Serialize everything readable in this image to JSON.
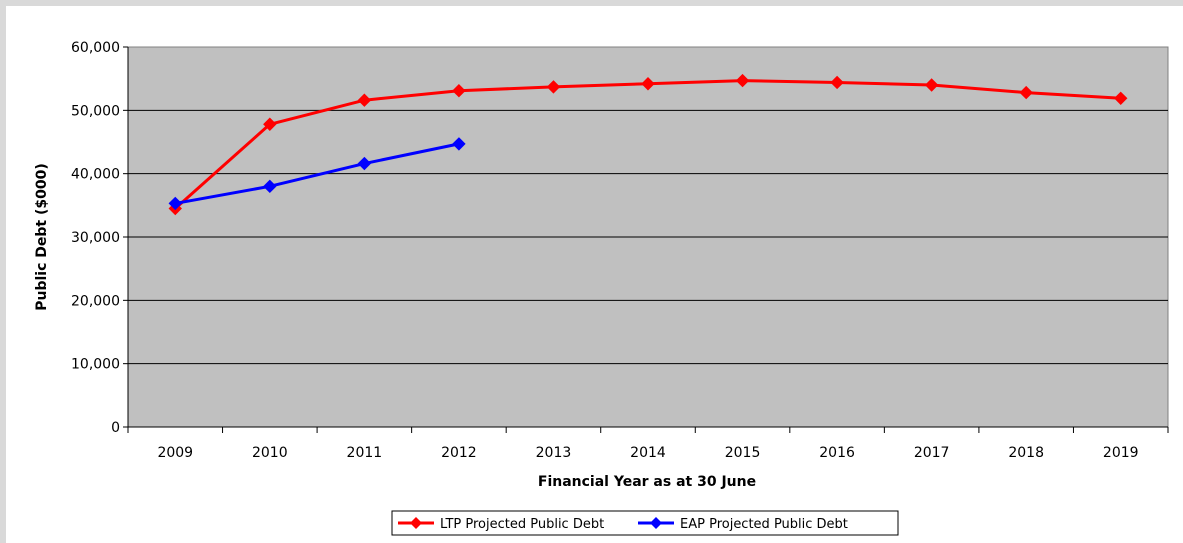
{
  "chart_data": {
    "type": "line",
    "title": "",
    "xlabel": "Financial Year as at 30 June",
    "ylabel": "Public Debt ($000)",
    "categories": [
      "2009",
      "2010",
      "2011",
      "2012",
      "2013",
      "2014",
      "2015",
      "2016",
      "2017",
      "2018",
      "2019"
    ],
    "ylim": [
      0,
      60000
    ],
    "yticks": [
      0,
      10000,
      20000,
      30000,
      40000,
      50000,
      60000
    ],
    "ytick_labels": [
      "0",
      "10,000",
      "20,000",
      "30,000",
      "40,000",
      "50,000",
      "60,000"
    ],
    "grid": "horizontal",
    "plot_background": "#c0c0c0",
    "legend_position": "bottom",
    "series": [
      {
        "name": "LTP Projected Public Debt",
        "color": "#ff0000",
        "marker": "diamond",
        "values": [
          34500,
          47800,
          51600,
          53100,
          53700,
          54200,
          54700,
          54400,
          54000,
          52800,
          51900
        ]
      },
      {
        "name": "EAP Projected Public Debt",
        "color": "#0000ff",
        "marker": "diamond",
        "values": [
          35300,
          38000,
          41600,
          44700,
          null,
          null,
          null,
          null,
          null,
          null,
          null
        ]
      }
    ]
  }
}
